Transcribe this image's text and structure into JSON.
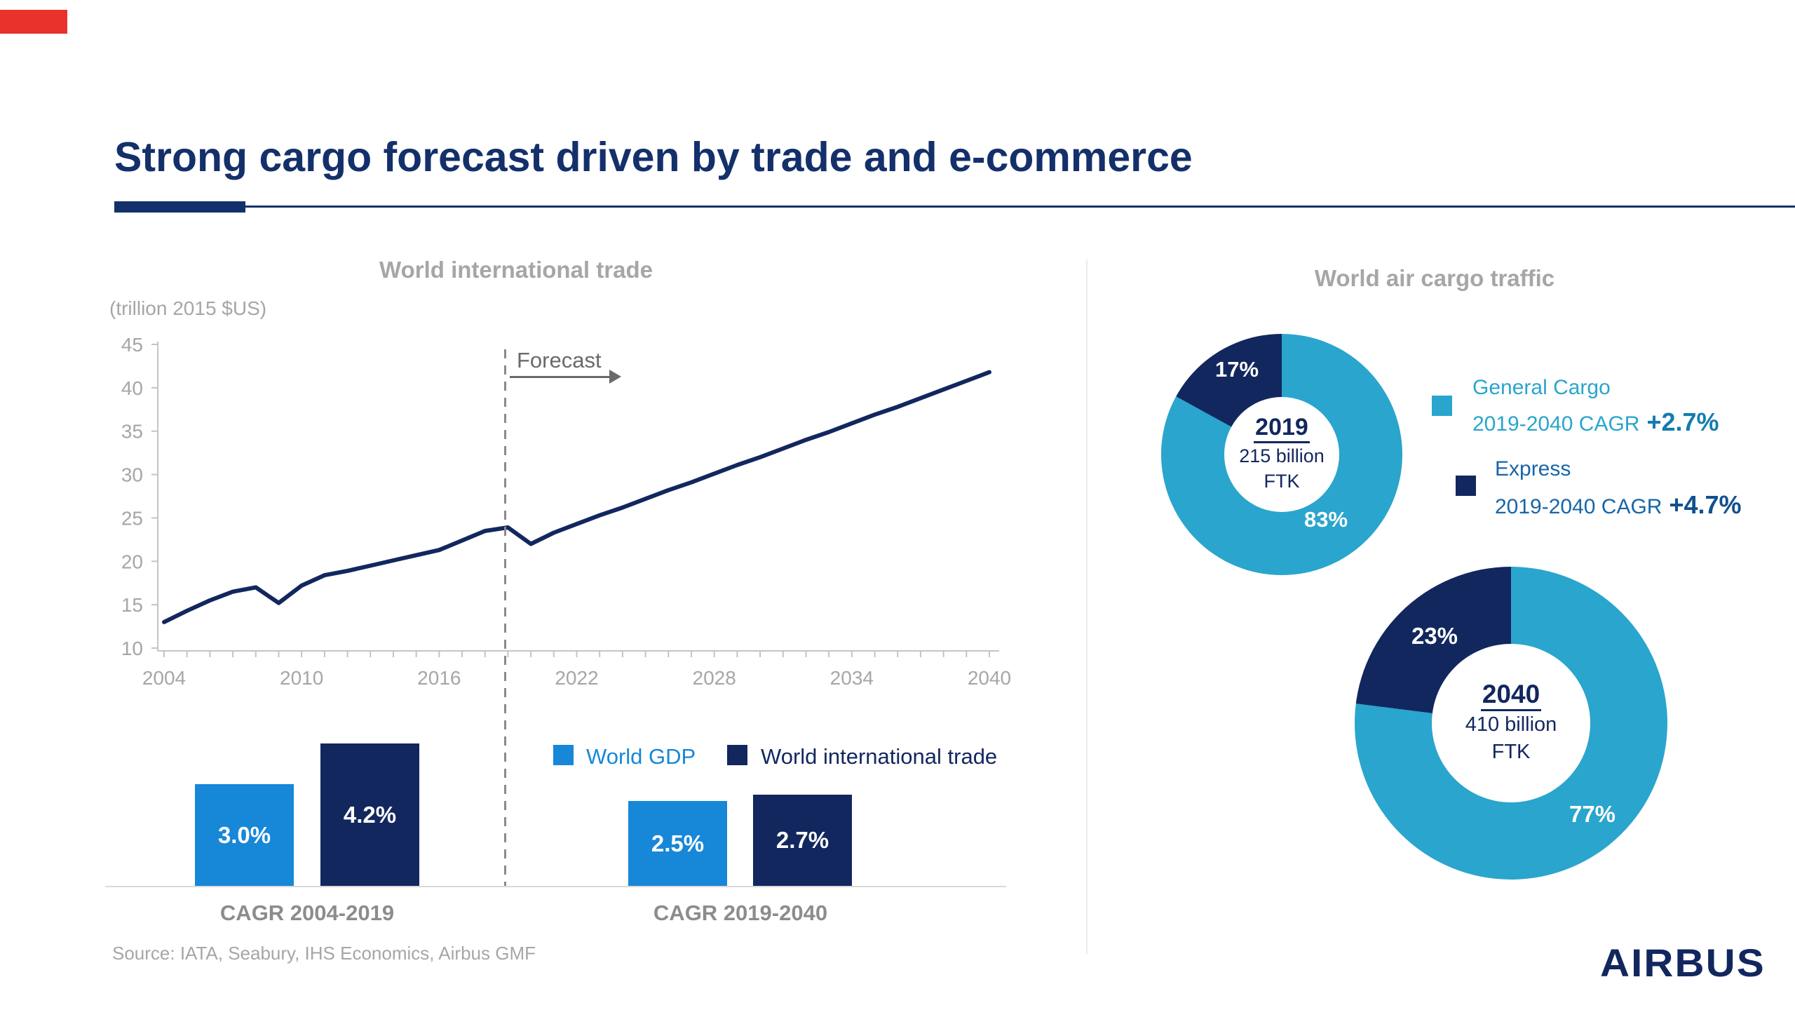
{
  "slide": {
    "title": "Strong cargo forecast driven by trade and e-commerce",
    "source": "Source: IATA, Seabury, IHS Economics, Airbus GMF",
    "brand": "AIRBUS",
    "colors": {
      "navy": "#12275E",
      "title_navy": "#14306B",
      "blue": "#1787D8",
      "cyan": "#2AA5CD",
      "red_accent": "#E8322B",
      "gray_label": "#A6A6A6"
    }
  },
  "chart_data": [
    {
      "type": "line",
      "title": "World international trade",
      "ylabel": "(trillion 2015 $US)",
      "ylim": [
        10,
        45
      ],
      "yticks": [
        10,
        15,
        20,
        25,
        30,
        35,
        40,
        45
      ],
      "xlim": [
        2004,
        2040
      ],
      "xticks": [
        2004,
        2010,
        2016,
        2022,
        2028,
        2034,
        2040
      ],
      "forecast_label": "Forecast",
      "forecast_start": 2019,
      "grid": false,
      "series": [
        {
          "name": "World international trade",
          "color": "#12275E",
          "x": [
            2004,
            2005,
            2006,
            2007,
            2008,
            2009,
            2010,
            2011,
            2012,
            2013,
            2014,
            2015,
            2016,
            2017,
            2018,
            2019,
            2020,
            2021,
            2022,
            2023,
            2024,
            2025,
            2026,
            2027,
            2028,
            2029,
            2030,
            2031,
            2032,
            2033,
            2034,
            2035,
            2036,
            2037,
            2038,
            2039,
            2040
          ],
          "values": [
            13.0,
            14.3,
            15.5,
            16.5,
            17.0,
            15.2,
            17.2,
            18.4,
            18.9,
            19.5,
            20.1,
            20.7,
            21.3,
            22.4,
            23.5,
            23.9,
            22.0,
            23.3,
            24.3,
            25.3,
            26.2,
            27.2,
            28.2,
            29.1,
            30.1,
            31.1,
            32.0,
            33.0,
            34.0,
            34.9,
            35.9,
            36.9,
            37.8,
            38.8,
            39.8,
            40.8,
            41.8
          ]
        }
      ]
    },
    {
      "type": "bar",
      "groups": [
        "CAGR 2004-2019",
        "CAGR 2019-2040"
      ],
      "unit": "percent",
      "series": [
        {
          "name": "World GDP",
          "color": "#1787D8",
          "values": [
            3.0,
            2.5
          ],
          "labels": [
            "3.0%",
            "2.5%"
          ]
        },
        {
          "name": "World international trade",
          "color": "#12275E",
          "values": [
            4.2,
            2.7
          ],
          "labels": [
            "4.2%",
            "2.7%"
          ]
        }
      ]
    },
    {
      "type": "pie",
      "title": "World air cargo traffic",
      "donuts": [
        {
          "year": "2019",
          "center_line1": "215 billion",
          "center_line2": "FTK",
          "slices": [
            {
              "name": "General Cargo",
              "pct": 83,
              "label": "83%",
              "color": "#2AA5CD"
            },
            {
              "name": "Express",
              "pct": 17,
              "label": "17%",
              "color": "#12275E"
            }
          ]
        },
        {
          "year": "2040",
          "center_line1": "410 billion",
          "center_line2": "FTK",
          "slices": [
            {
              "name": "General Cargo",
              "pct": 77,
              "label": "77%",
              "color": "#2AA5CD"
            },
            {
              "name": "Express",
              "pct": 23,
              "label": "23%",
              "color": "#12275E"
            }
          ]
        }
      ],
      "legend": [
        {
          "name": "General Cargo",
          "cagr_label": "2019-2040 CAGR",
          "cagr_value": "+2.7%",
          "color": "#2AA5CD"
        },
        {
          "name": "Express",
          "cagr_label": "2019-2040 CAGR",
          "cagr_value": "+4.7%",
          "color": "#12275E"
        }
      ]
    }
  ]
}
